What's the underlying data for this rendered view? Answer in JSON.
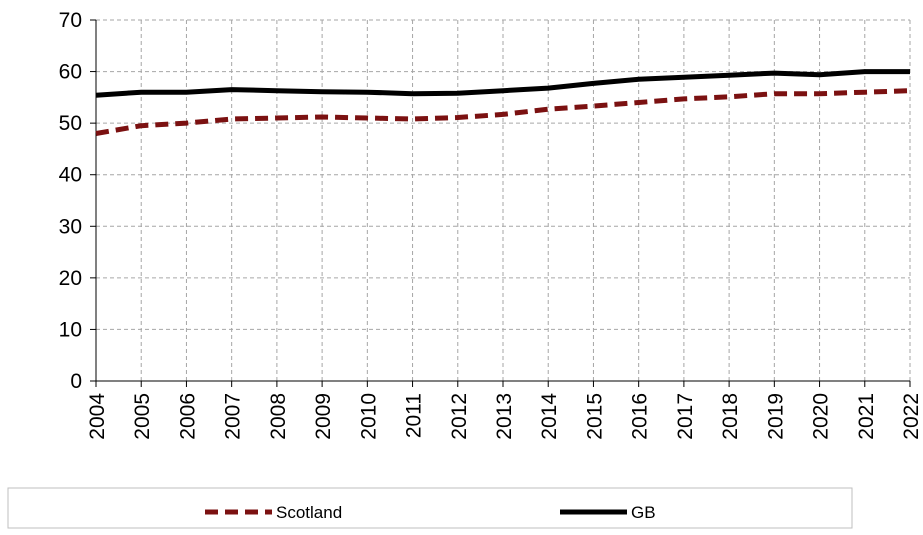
{
  "chart_data": {
    "type": "line",
    "x": [
      "2004",
      "2005",
      "2006",
      "2007",
      "2008",
      "2009",
      "2010",
      "2011",
      "2012",
      "2013",
      "2014",
      "2015",
      "2016",
      "2017",
      "2018",
      "2019",
      "2020",
      "2021",
      "2022"
    ],
    "series": [
      {
        "name": "Scotland",
        "color": "#7B1111",
        "style": "dashed",
        "values": [
          48.0,
          49.5,
          50.0,
          50.8,
          51.0,
          51.2,
          51.0,
          50.8,
          51.1,
          51.7,
          52.7,
          53.3,
          54.0,
          54.7,
          55.1,
          55.7,
          55.7,
          56.0,
          56.3
        ]
      },
      {
        "name": "GB",
        "color": "#000000",
        "style": "solid",
        "values": [
          55.4,
          56.0,
          56.0,
          56.5,
          56.3,
          56.1,
          56.0,
          55.7,
          55.8,
          56.3,
          56.8,
          57.7,
          58.5,
          58.9,
          59.3,
          59.7,
          59.4,
          60.0,
          60.0
        ]
      }
    ],
    "yticks": [
      "0",
      "10",
      "20",
      "30",
      "40",
      "50",
      "60",
      "70"
    ],
    "ylim": [
      0,
      70
    ],
    "grid": true,
    "legend_position": "bottom"
  }
}
